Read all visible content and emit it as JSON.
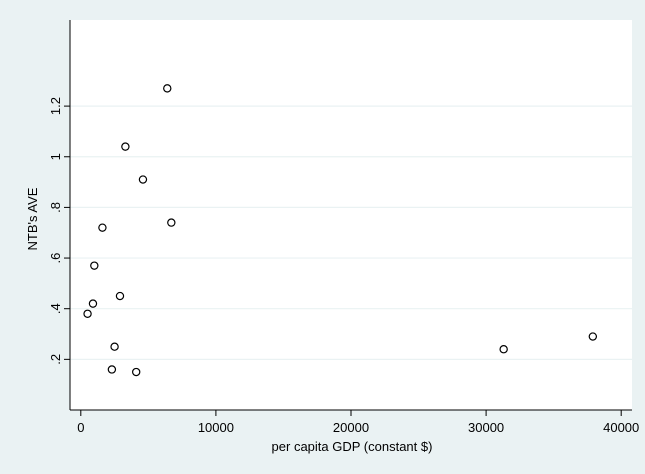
{
  "chart_data": {
    "type": "scatter",
    "xlabel": "per capita GDP (constant $)",
    "ylabel": "NTB's AVE",
    "xlim": [
      -800,
      40800
    ],
    "ylim": [
      0.0,
      1.54
    ],
    "x_ticks": [
      0,
      10000,
      20000,
      30000,
      40000
    ],
    "x_tick_labels": [
      "0",
      "10000",
      "20000",
      "30000",
      "40000"
    ],
    "y_ticks": [
      0.2,
      0.4,
      0.6,
      0.8,
      1.0,
      1.2
    ],
    "y_tick_labels": [
      ".2",
      ".4",
      ".6",
      ".8",
      "1",
      "1.2"
    ],
    "grid": "horizontal",
    "colors": {
      "background": "#eaf2f3",
      "plot_area": "#ffffff",
      "gridline": "#eaf2f3",
      "marker": "#000000"
    },
    "points": [
      {
        "x": 500,
        "y": 0.38
      },
      {
        "x": 900,
        "y": 0.42
      },
      {
        "x": 1000,
        "y": 0.57
      },
      {
        "x": 1600,
        "y": 0.72
      },
      {
        "x": 2300,
        "y": 0.16
      },
      {
        "x": 2500,
        "y": 0.25
      },
      {
        "x": 2900,
        "y": 0.45
      },
      {
        "x": 3300,
        "y": 1.04
      },
      {
        "x": 4100,
        "y": 0.15
      },
      {
        "x": 4600,
        "y": 0.91
      },
      {
        "x": 6400,
        "y": 1.27
      },
      {
        "x": 6700,
        "y": 0.74
      },
      {
        "x": 31300,
        "y": 0.24
      },
      {
        "x": 37900,
        "y": 0.29
      }
    ]
  }
}
